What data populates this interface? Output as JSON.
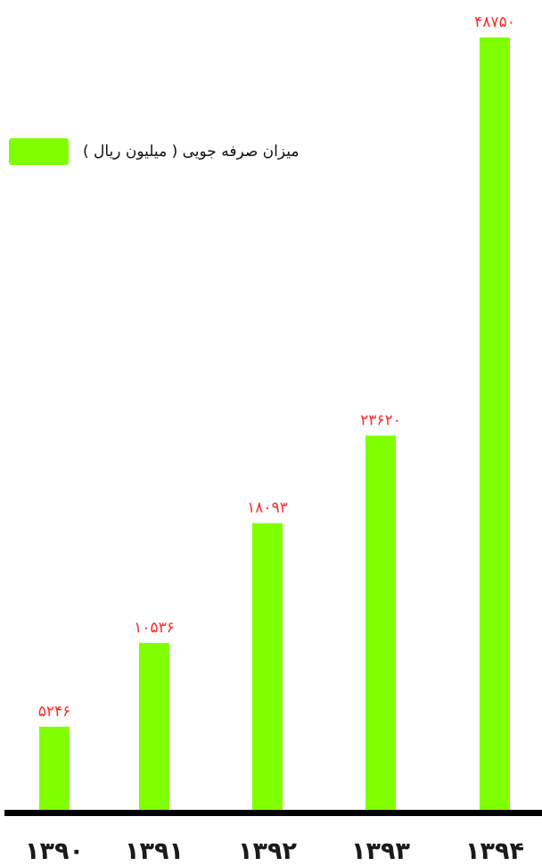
{
  "colors": {
    "bar": "#80ff00",
    "value_label": "#ff2a2a",
    "axis": "#000000",
    "category_label": "#1a1a1a"
  },
  "legend": {
    "label": "میزان صرفه جویی ( میلیون ریال )"
  },
  "chart_data": {
    "type": "bar",
    "categories": [
      "۱۳۹۰",
      "۱۳۹۱",
      "۱۳۹۲",
      "۱۳۹۳",
      "۱۳۹۴"
    ],
    "values": [
      5246,
      10536,
      18093,
      23620,
      48750
    ],
    "value_labels": [
      "۵۲۴۶",
      "۱۰۵۳۶",
      "۱۸۰۹۳",
      "۲۳۶۲۰",
      "۴۸۷۵۰"
    ],
    "series": [
      {
        "name": "میزان صرفه جویی ( میلیون ریال )",
        "values": [
          5246,
          10536,
          18093,
          23620,
          48750
        ]
      }
    ],
    "title": "",
    "xlabel": "",
    "ylabel": "",
    "ylim": [
      0,
      48750
    ],
    "grid": false,
    "legend_position": "top-left"
  }
}
